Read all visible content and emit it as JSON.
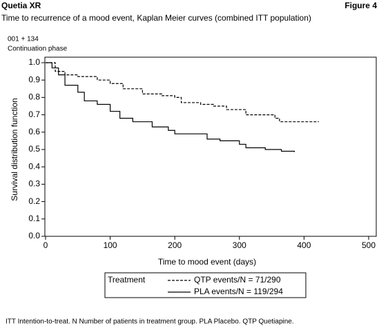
{
  "header": {
    "product": "Quetia XR",
    "figure": "Figure 4"
  },
  "chart_data": {
    "type": "step",
    "title": "Time to recurrence of a mood event, Kaplan Meier curves (combined ITT population)",
    "annotations": [
      "001 + 134",
      "Continuation phase"
    ],
    "x_label": "Time to mood event (days)",
    "y_label": "Survival distribution function",
    "xlim": [
      0,
      500
    ],
    "xticks": [
      0,
      100,
      200,
      300,
      400,
      500
    ],
    "ylim": [
      0,
      1
    ],
    "yticks": [
      {
        "value": 0,
        "label": "0.0"
      },
      0.1,
      0.2,
      0.3,
      0.4,
      0.5,
      0.6,
      0.7,
      0.8,
      0.9,
      {
        "value": 1,
        "label": "1.0"
      }
    ],
    "legend_title": "Treatment",
    "series": [
      {
        "name": "QTP events/N = 71/290",
        "color": "#000000",
        "dash": true,
        "x": [
          0,
          15,
          30,
          50,
          80,
          100,
          120,
          150,
          180,
          200,
          210,
          240,
          260,
          280,
          310,
          355,
          362,
          423
        ],
        "values": [
          1.0,
          0.95,
          0.93,
          0.92,
          0.9,
          0.88,
          0.85,
          0.82,
          0.81,
          0.8,
          0.77,
          0.76,
          0.75,
          0.73,
          0.7,
          0.68,
          0.66,
          0.66
        ]
      },
      {
        "name": "PLA events/N = 119/294",
        "color": "#000000",
        "dash": false,
        "x": [
          0,
          10,
          20,
          30,
          50,
          60,
          80,
          100,
          115,
          135,
          165,
          190,
          200,
          250,
          270,
          300,
          310,
          340,
          365,
          385
        ],
        "values": [
          1.0,
          0.97,
          0.93,
          0.87,
          0.83,
          0.78,
          0.76,
          0.72,
          0.68,
          0.66,
          0.63,
          0.61,
          0.59,
          0.56,
          0.55,
          0.53,
          0.51,
          0.5,
          0.49,
          0.485
        ]
      }
    ],
    "footnote": "ITT Intention-to-treat. N Number of patients in treatment group. PLA Placebo. QTP Quetiapine."
  }
}
